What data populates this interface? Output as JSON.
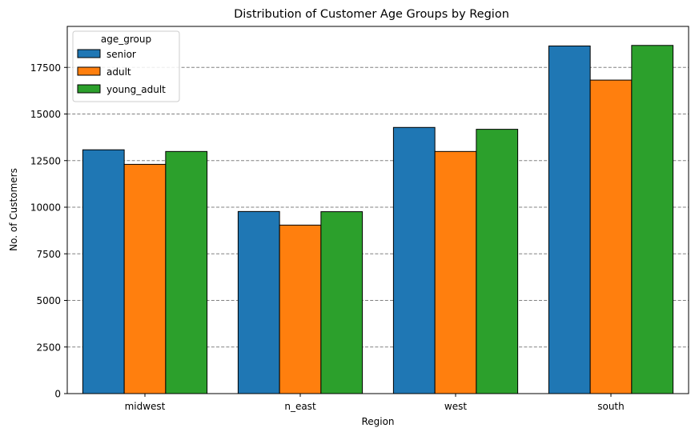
{
  "chart_data": {
    "type": "bar",
    "title": "Distribution of Customer Age Groups by Region",
    "xlabel": "Region",
    "ylabel": "No. of Customers",
    "categories": [
      "midwest",
      "n_east",
      "west",
      "south"
    ],
    "series": [
      {
        "name": "senior",
        "values": [
          13080,
          9770,
          14280,
          18650
        ],
        "color": "#1f77b4"
      },
      {
        "name": "adult",
        "values": [
          12300,
          9040,
          12990,
          16820
        ],
        "color": "#ff7f0e"
      },
      {
        "name": "young_adult",
        "values": [
          12990,
          9760,
          14180,
          18680
        ],
        "color": "#2ca02c"
      }
    ],
    "ylim": [
      0,
      19700
    ],
    "yticks": [
      0,
      2500,
      5000,
      7500,
      10000,
      12500,
      15000,
      17500
    ],
    "ytick_labels": [
      "0",
      "2500",
      "5000",
      "7500",
      "10000",
      "12500",
      "15000",
      "17500"
    ],
    "grid": "y-dashed",
    "legend": {
      "title": "age_group",
      "placement": "top-left"
    }
  }
}
